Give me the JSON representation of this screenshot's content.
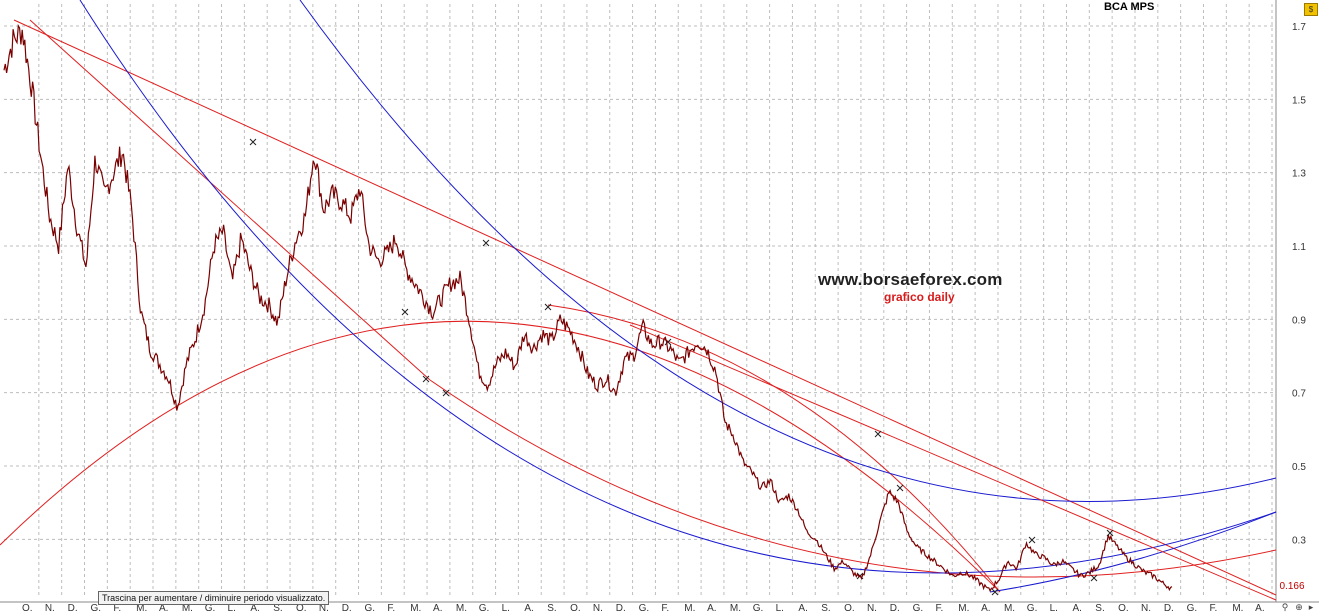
{
  "header": {
    "title": "BCA MPS"
  },
  "watermark": {
    "site": "www.borsaeforex.com",
    "subtitle": "grafico daily"
  },
  "hint": {
    "text": "Trascina per aumentare / diminuire periodo visualizzato."
  },
  "last_value": {
    "text": "0.166",
    "color": "#c00000"
  },
  "price_box": {
    "text": "$"
  },
  "colors": {
    "price": "#7a0000",
    "red_line": "#e02020",
    "blue_line": "#1a1ad0",
    "grid": "#bdbdbd"
  },
  "chart_data": {
    "type": "line",
    "title": "BCA MPS",
    "y_ticks": [
      1.7,
      1.5,
      1.3,
      1.1,
      0.9,
      0.7,
      0.5,
      0.3
    ],
    "ylim": [
      0.14,
      1.76
    ],
    "x_labels": [
      "O.",
      "N.",
      "D.",
      "G.",
      "F.",
      "M.",
      "A.",
      "M.",
      "G.",
      "L.",
      "A.",
      "S.",
      "O.",
      "N.",
      "D.",
      "G.",
      "F.",
      "M.",
      "A.",
      "M.",
      "G.",
      "L.",
      "A.",
      "S.",
      "O.",
      "N.",
      "D.",
      "G.",
      "F.",
      "M.",
      "A.",
      "M.",
      "G.",
      "L.",
      "A.",
      "S.",
      "O.",
      "N.",
      "D.",
      "G.",
      "F.",
      "M.",
      "A.",
      "M.",
      "G.",
      "L.",
      "A.",
      "S.",
      "O.",
      "N.",
      "D.",
      "G.",
      "F.",
      "M.",
      "A."
    ],
    "series": [
      {
        "type": "price",
        "values": [
          1.58,
          1.66,
          1.69,
          1.54,
          1.35,
          1.18,
          1.1,
          1.32,
          1.15,
          1.04,
          1.34,
          1.24,
          1.3,
          1.36,
          1.2,
          0.92,
          0.82,
          0.78,
          0.74,
          0.66,
          0.78,
          0.85,
          0.94,
          1.1,
          1.14,
          1.0,
          1.12,
          1.03,
          0.96,
          0.94,
          0.89,
          1.02,
          1.12,
          1.18,
          1.36,
          1.2,
          1.24,
          1.22,
          1.18,
          1.26,
          1.1,
          1.06,
          1.08,
          1.12,
          1.04,
          1.0,
          0.96,
          0.92,
          0.96,
          1.0,
          1.01,
          0.9,
          0.76,
          0.72,
          0.78,
          0.81,
          0.77,
          0.86,
          0.82,
          0.86,
          0.84,
          0.9,
          0.87,
          0.82,
          0.75,
          0.72,
          0.74,
          0.7,
          0.79,
          0.8,
          0.88,
          0.83,
          0.84,
          0.82,
          0.78,
          0.81,
          0.84,
          0.82,
          0.76,
          0.62,
          0.58,
          0.51,
          0.48,
          0.44,
          0.46,
          0.4,
          0.42,
          0.38,
          0.32,
          0.3,
          0.26,
          0.22,
          0.24,
          0.21,
          0.19,
          0.26,
          0.35,
          0.43,
          0.4,
          0.32,
          0.28,
          0.26,
          0.24,
          0.22,
          0.2,
          0.21,
          0.2,
          0.18,
          0.16,
          0.19,
          0.24,
          0.22,
          0.29,
          0.26,
          0.25,
          0.23,
          0.24,
          0.22,
          0.2,
          0.21,
          0.23,
          0.31,
          0.28,
          0.25,
          0.23,
          0.21,
          0.2,
          0.18,
          0.166
        ]
      }
    ]
  }
}
